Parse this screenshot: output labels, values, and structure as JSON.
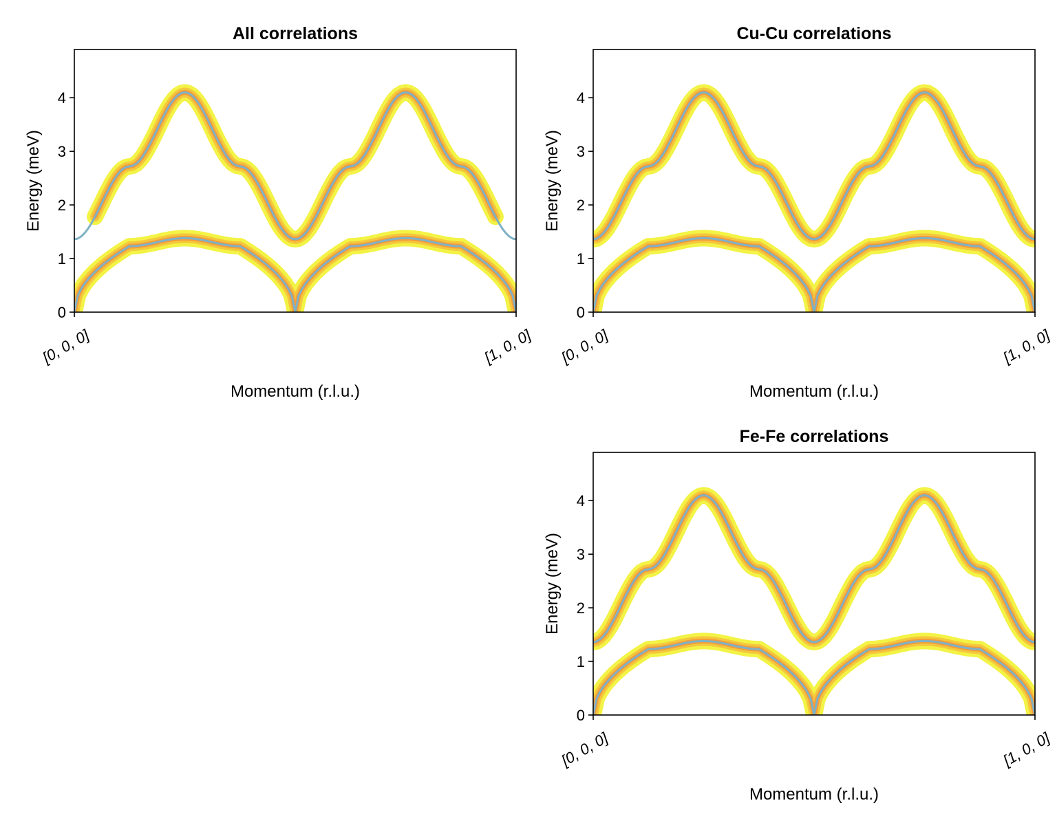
{
  "chart_data": [
    {
      "type": "heatmap",
      "title": "All correlations",
      "xlabel": "Momentum (r.l.u.)",
      "ylabel": "Energy (meV)",
      "xticklabels": [
        "[0, 0, 0]",
        "[1, 0, 0]"
      ],
      "yticks": [
        0,
        1,
        2,
        3,
        4
      ],
      "xlim": [
        0,
        1
      ],
      "ylim": [
        0,
        4.9
      ],
      "grid": false,
      "dispersion_lines": [
        {
          "x": [
            0,
            0.125,
            0.25,
            0.375,
            0.5,
            0.625,
            0.75,
            0.875,
            1
          ],
          "y": [
            1.36,
            2.72,
            4.1,
            2.72,
            1.36,
            2.72,
            4.1,
            2.72,
            1.36
          ]
        },
        {
          "x": [
            0,
            0.125,
            0.25,
            0.375,
            0.5,
            0.625,
            0.75,
            0.875,
            1
          ],
          "y": [
            0,
            1.23,
            1.38,
            1.23,
            0,
            1.23,
            1.38,
            1.23,
            0
          ]
        }
      ],
      "intensity_bands": [
        {
          "branch": "upper",
          "x_range": [
            0.04,
            0.96
          ]
        },
        {
          "branch": "lower",
          "x_range": [
            0,
            1
          ]
        }
      ],
      "colors": {
        "line": "#7fb1c4",
        "band_outer": "#f2f23c",
        "band_mid": "#f5b83a",
        "band_inner": "#ee7a3c"
      }
    },
    {
      "type": "heatmap",
      "title": "Cu-Cu correlations",
      "xlabel": "Momentum (r.l.u.)",
      "ylabel": "Energy (meV)",
      "xticklabels": [
        "[0, 0, 0]",
        "[1, 0, 0]"
      ],
      "yticks": [
        0,
        1,
        2,
        3,
        4
      ],
      "xlim": [
        0,
        1
      ],
      "ylim": [
        0,
        4.9
      ],
      "grid": false,
      "dispersion_lines": [
        {
          "x": [
            0,
            0.125,
            0.25,
            0.375,
            0.5,
            0.625,
            0.75,
            0.875,
            1
          ],
          "y": [
            1.36,
            2.72,
            4.1,
            2.72,
            1.36,
            2.72,
            4.1,
            2.72,
            1.36
          ]
        },
        {
          "x": [
            0,
            0.125,
            0.25,
            0.375,
            0.5,
            0.625,
            0.75,
            0.875,
            1
          ],
          "y": [
            0,
            1.23,
            1.38,
            1.23,
            0,
            1.23,
            1.38,
            1.23,
            0
          ]
        }
      ],
      "intensity_bands": [
        {
          "branch": "upper",
          "x_range": [
            0,
            1
          ]
        },
        {
          "branch": "lower",
          "x_range": [
            0,
            1
          ]
        }
      ],
      "colors": {
        "line": "#7fb1c4",
        "band_outer": "#f2f23c",
        "band_mid": "#f5b83a",
        "band_inner": "#ee7a3c"
      }
    },
    {
      "type": "heatmap",
      "title": "Fe-Fe correlations",
      "xlabel": "Momentum (r.l.u.)",
      "ylabel": "Energy (meV)",
      "xticklabels": [
        "[0, 0, 0]",
        "[1, 0, 0]"
      ],
      "yticks": [
        0,
        1,
        2,
        3,
        4
      ],
      "xlim": [
        0,
        1
      ],
      "ylim": [
        0,
        4.9
      ],
      "grid": false,
      "dispersion_lines": [
        {
          "x": [
            0,
            0.125,
            0.25,
            0.375,
            0.5,
            0.625,
            0.75,
            0.875,
            1
          ],
          "y": [
            1.36,
            2.72,
            4.1,
            2.72,
            1.36,
            2.72,
            4.1,
            2.72,
            1.36
          ]
        },
        {
          "x": [
            0,
            0.125,
            0.25,
            0.375,
            0.5,
            0.625,
            0.75,
            0.875,
            1
          ],
          "y": [
            0,
            1.23,
            1.38,
            1.23,
            0,
            1.23,
            1.38,
            1.23,
            0
          ]
        }
      ],
      "intensity_bands": [
        {
          "branch": "upper",
          "x_range": [
            0,
            1
          ]
        },
        {
          "branch": "lower",
          "x_range": [
            0,
            1
          ]
        }
      ],
      "colors": {
        "line": "#7fb1c4",
        "band_outer": "#f2f23c",
        "band_mid": "#f5b83a",
        "band_inner": "#ee7a3c"
      }
    }
  ]
}
